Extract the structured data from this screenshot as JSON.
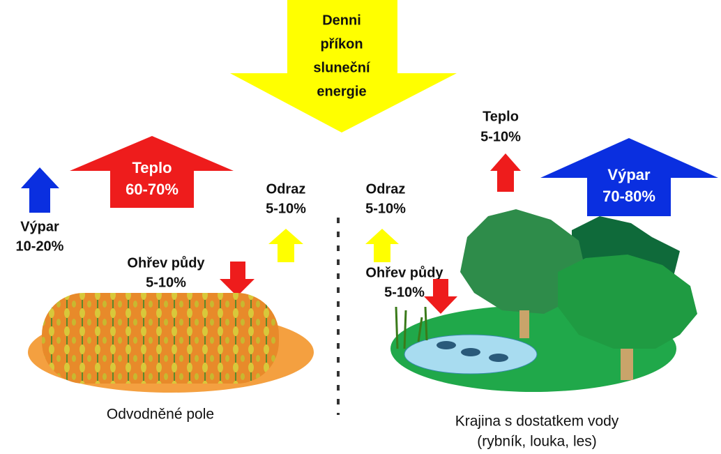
{
  "sun": {
    "lines": [
      "Denni",
      "příkon",
      "sluneční",
      "energie"
    ]
  },
  "left": {
    "vypar": {
      "label": "Výpar",
      "value": "10-20%"
    },
    "teplo": {
      "label": "Teplo",
      "value": "60-70%"
    },
    "odraz": {
      "label": "Odraz",
      "value": "5-10%"
    },
    "ohrev": {
      "label": "Ohřev půdy",
      "value": "5-10%"
    },
    "caption": "Odvodněné pole"
  },
  "right": {
    "teplo": {
      "label": "Teplo",
      "value": "5-10%"
    },
    "vypar": {
      "label": "Výpar",
      "value": "70-80%"
    },
    "odraz": {
      "label": "Odraz",
      "value": "5-10%"
    },
    "ohrev": {
      "label": "Ohřev půdy",
      "value": "5-10%"
    },
    "caption": [
      "Krajina s dostatkem vody",
      "(rybník, louka, les)"
    ]
  }
}
